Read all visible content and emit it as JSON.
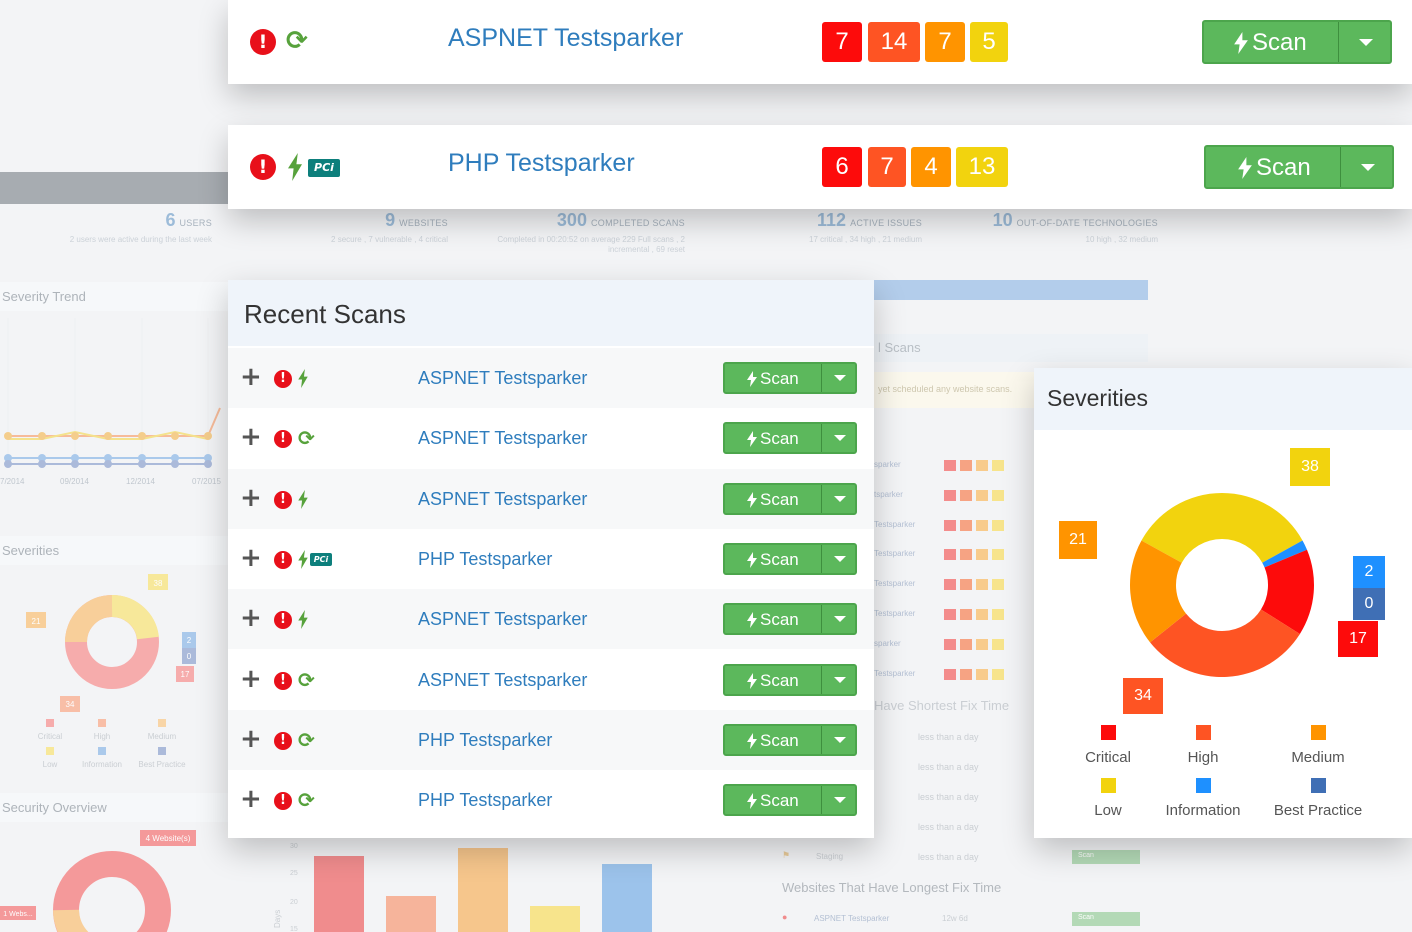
{
  "colors": {
    "critical": "#fd0b0b",
    "high": "#fe5423",
    "medium": "#ff9400",
    "low": "#f2d30e",
    "information": "#1e90ff",
    "best_practice": "#3f6fb5",
    "scan_green": "#5cb85c",
    "link_blue": "#2f7dbd"
  },
  "top_cards": [
    {
      "name": "ASPNET Testsparker",
      "icons": [
        "alert-icon",
        "refresh-icon"
      ],
      "counts": [
        "7",
        "14",
        "7",
        "5"
      ],
      "scan_label": "Scan"
    },
    {
      "name": "PHP Testsparker",
      "icons": [
        "alert-icon",
        "bolt-icon",
        "pci-icon"
      ],
      "pci_label": "PCi",
      "counts": [
        "6",
        "7",
        "4",
        "13"
      ],
      "scan_label": "Scan"
    }
  ],
  "background": {
    "stats": [
      {
        "num": "6",
        "label": "USERS",
        "sub": "2 users were active during the last week"
      },
      {
        "num": "9",
        "label": "WEBSITES",
        "sub": "2 secure , 7 vulnerable , 4 critical"
      },
      {
        "num": "300",
        "label": "COMPLETED SCANS",
        "sub": "Completed in 00:20:52 on average 229 Full scans , 2",
        "sub2": "incremental , 69 reset"
      },
      {
        "num": "112",
        "label": "ACTIVE ISSUES",
        "sub": "17 critical , 34 high , 21 medium"
      },
      {
        "num": "10",
        "label": "OUT-OF-DATE TECHNOLOGIES",
        "sub": "10 high , 32 medium"
      }
    ],
    "severity_trend_title": "Severity Trend",
    "trend_ticks": [
      "7/2014",
      "09/2014",
      "12/2014",
      "07/2015"
    ],
    "severities_title": "Severities",
    "mini_donut_labels": [
      "38",
      "21",
      "2",
      "0",
      "17",
      "34"
    ],
    "mini_legend": [
      "Critical",
      "High",
      "Medium",
      "Low",
      "Information",
      "Best Practice"
    ],
    "security_overview_title": "Security Overview",
    "security_badge": "4 Website(s)",
    "security_badge2": "1 Webs...",
    "scans_title": "l Scans",
    "scans_note": "yet scheduled any website scans.",
    "scan_rows": [
      "sparker",
      "tsparker",
      "Testsparker",
      "Testsparker",
      "Testsparker",
      "Testsparker",
      "sparker",
      "Testsparker"
    ],
    "shortest_title": "Have Shortest Fix Time",
    "fix_times": [
      "less than a day",
      "less than a day",
      "less than a day",
      "less than a day",
      "less than a day"
    ],
    "staging_label": "Staging",
    "longest_title": "Websites That Have Longest Fix Time",
    "longest_row_name": "ASPNET Testsparker",
    "longest_row_time": "12w 6d",
    "mini_scan_label": "Scan",
    "bar_ticks": [
      "30",
      "25",
      "20",
      "15"
    ],
    "bar_axis_label": "Days"
  },
  "recent_scans": {
    "title": "Recent Scans",
    "rows": [
      {
        "name": "ASPNET Testsparker",
        "icons": [
          "alert-icon",
          "bolt-icon"
        ],
        "scan_label": "Scan"
      },
      {
        "name": "ASPNET Testsparker",
        "icons": [
          "alert-icon",
          "refresh-icon"
        ],
        "scan_label": "Scan"
      },
      {
        "name": "ASPNET Testsparker",
        "icons": [
          "alert-icon",
          "bolt-icon"
        ],
        "scan_label": "Scan"
      },
      {
        "name": "PHP Testsparker",
        "icons": [
          "alert-icon",
          "bolt-icon",
          "pci-icon"
        ],
        "scan_label": "Scan"
      },
      {
        "name": "ASPNET Testsparker",
        "icons": [
          "alert-icon",
          "bolt-icon"
        ],
        "scan_label": "Scan"
      },
      {
        "name": "ASPNET Testsparker",
        "icons": [
          "alert-icon",
          "refresh-icon"
        ],
        "scan_label": "Scan"
      },
      {
        "name": "PHP Testsparker",
        "icons": [
          "alert-icon",
          "refresh-icon"
        ],
        "scan_label": "Scan"
      },
      {
        "name": "PHP Testsparker",
        "icons": [
          "alert-icon",
          "refresh-icon"
        ],
        "scan_label": "Scan"
      }
    ]
  },
  "severities": {
    "title": "Severities",
    "slices": [
      {
        "name": "Critical",
        "value": 17
      },
      {
        "name": "High",
        "value": 34
      },
      {
        "name": "Medium",
        "value": 21
      },
      {
        "name": "Low",
        "value": 38
      },
      {
        "name": "Information",
        "value": 2
      },
      {
        "name": "Best Practice",
        "value": 0
      }
    ],
    "value_labels": {
      "low": "38",
      "medium": "21",
      "information": "2",
      "best_practice": "0",
      "critical": "17",
      "high": "34"
    },
    "legend": [
      "Critical",
      "High",
      "Medium",
      "Low",
      "Information",
      "Best Practice"
    ]
  }
}
